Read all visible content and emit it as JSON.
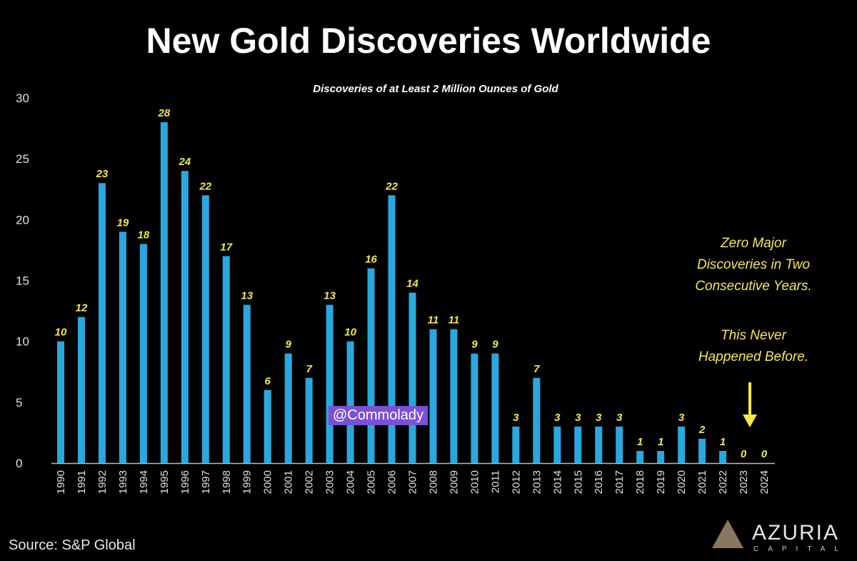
{
  "chart_data": {
    "type": "bar",
    "title": "New Gold Discoveries Worldwide",
    "subtitle": "Discoveries of at Least 2 Million Ounces of Gold",
    "xlabel": "",
    "ylabel": "",
    "ylim": [
      0,
      30
    ],
    "yticks": [
      0,
      5,
      10,
      15,
      20,
      25,
      30
    ],
    "categories": [
      "1990",
      "1991",
      "1992",
      "1993",
      "1994",
      "1995",
      "1996",
      "1997",
      "1998",
      "1999",
      "2000",
      "2001",
      "2002",
      "2003",
      "2004",
      "2005",
      "2006",
      "2007",
      "2008",
      "2009",
      "2010",
      "2011",
      "2012",
      "2013",
      "2014",
      "2015",
      "2016",
      "2017",
      "2018",
      "2019",
      "2020",
      "2021",
      "2022",
      "2023",
      "2024"
    ],
    "values": [
      10,
      12,
      23,
      19,
      18,
      28,
      24,
      22,
      17,
      13,
      6,
      9,
      7,
      13,
      10,
      16,
      22,
      14,
      11,
      11,
      9,
      9,
      3,
      7,
      3,
      3,
      3,
      3,
      1,
      1,
      3,
      2,
      1,
      0,
      0
    ],
    "bar_color": "#29a8e0",
    "label_color": "#f5e94a",
    "grid": false,
    "annotations": [
      "Zero Major Discoveries in Two Consecutive Years.",
      "This Never Happened Before."
    ]
  },
  "annotation": {
    "line1": "Zero Major",
    "line2": "Discoveries in Two",
    "line3": "Consecutive Years.",
    "line4": "This Never",
    "line5": "Happened Before."
  },
  "watermark": "@Commolady",
  "source": "Source: S&P Global",
  "logo": {
    "name": "AZURIA",
    "sub": "CAPITAL"
  }
}
